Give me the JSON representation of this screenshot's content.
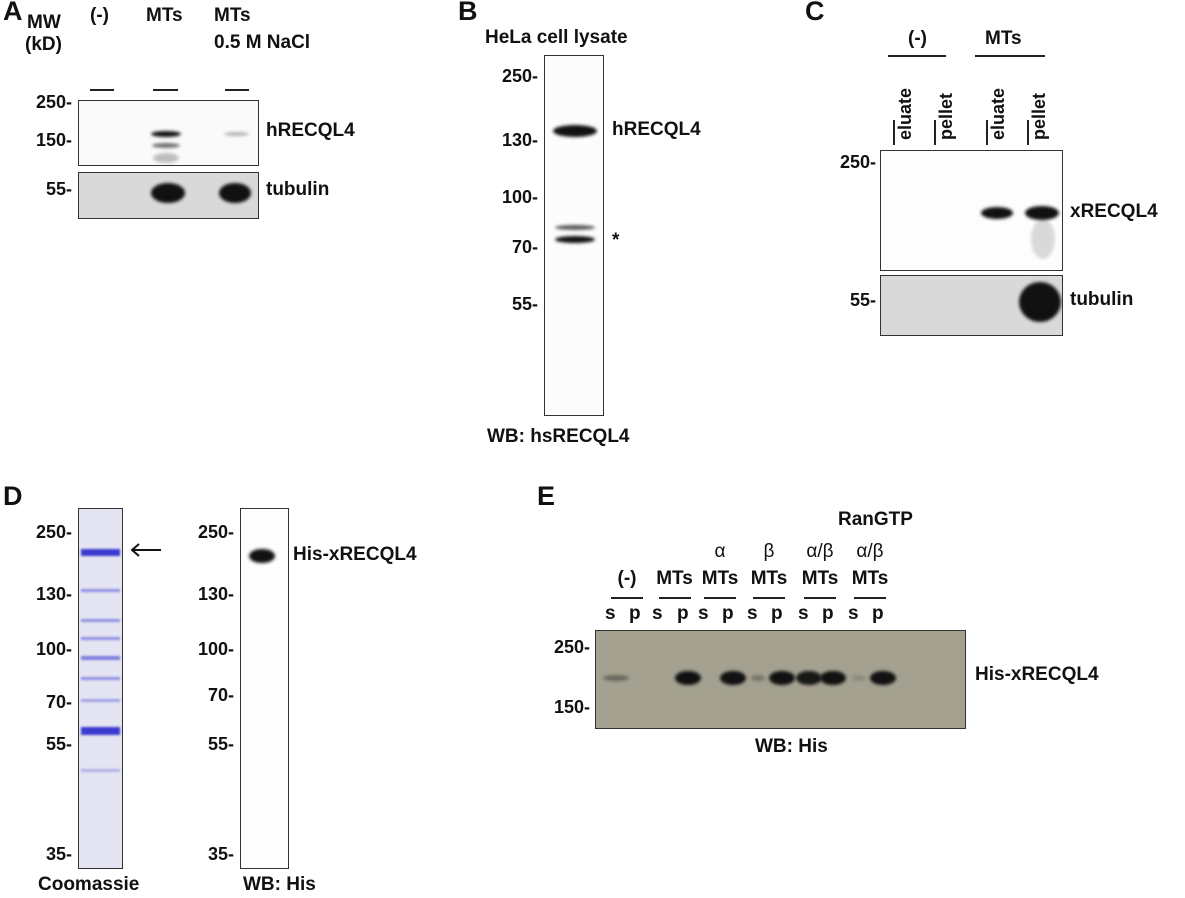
{
  "panels": {
    "A": {
      "letter": "A",
      "mw": "MW",
      "kd": "(kD)",
      "lanes": [
        "(-)",
        "MTs",
        "MTs"
      ],
      "lane3_sub": "0.5 M NaCl",
      "ticks": [
        "250-",
        "150-",
        "55-"
      ],
      "labels": [
        "hRECQL4",
        "tubulin"
      ]
    },
    "B": {
      "letter": "B",
      "title": "HeLa cell lysate",
      "ticks": [
        "250-",
        "130-",
        "100-",
        "70-",
        "55-"
      ],
      "labels": [
        "hRECQL4",
        "*"
      ],
      "footer": "WB: hsRECQL4"
    },
    "C": {
      "letter": "C",
      "groups": [
        "(-)",
        "MTs"
      ],
      "fractions": [
        "eluate",
        "pellet",
        "eluate",
        "pellet"
      ],
      "ticks": [
        "250-",
        "55-"
      ],
      "labels": [
        "xRECQL4",
        "tubulin"
      ]
    },
    "D": {
      "letter": "D",
      "ticks": [
        "250-",
        "130-",
        "100-",
        "70-",
        "55-",
        "35-"
      ],
      "coomassie": "Coomassie",
      "wb": "WB: His",
      "label": "His-xRECQL4",
      "arrow": "arrow-icon"
    },
    "E": {
      "letter": "E",
      "ranlabel": "RanGTP",
      "groups": [
        {
          "top": "",
          "name": "(-)"
        },
        {
          "top": "",
          "name": "MTs"
        },
        {
          "top": "α",
          "name": "MTs"
        },
        {
          "top": "β",
          "name": "MTs"
        },
        {
          "top": "α/β",
          "name": "MTs"
        },
        {
          "top": "α/β",
          "name": "MTs"
        }
      ],
      "sp": [
        "s",
        "p"
      ],
      "ticks": [
        "250-",
        "150-"
      ],
      "label": "His-xRECQL4",
      "footer": "WB: His",
      "band_intensity": [
        0.35,
        0,
        0,
        0.95,
        0,
        0.95,
        0.25,
        1,
        0.9,
        0.95,
        0.1,
        1
      ],
      "blot_color": "#a4a190"
    }
  }
}
